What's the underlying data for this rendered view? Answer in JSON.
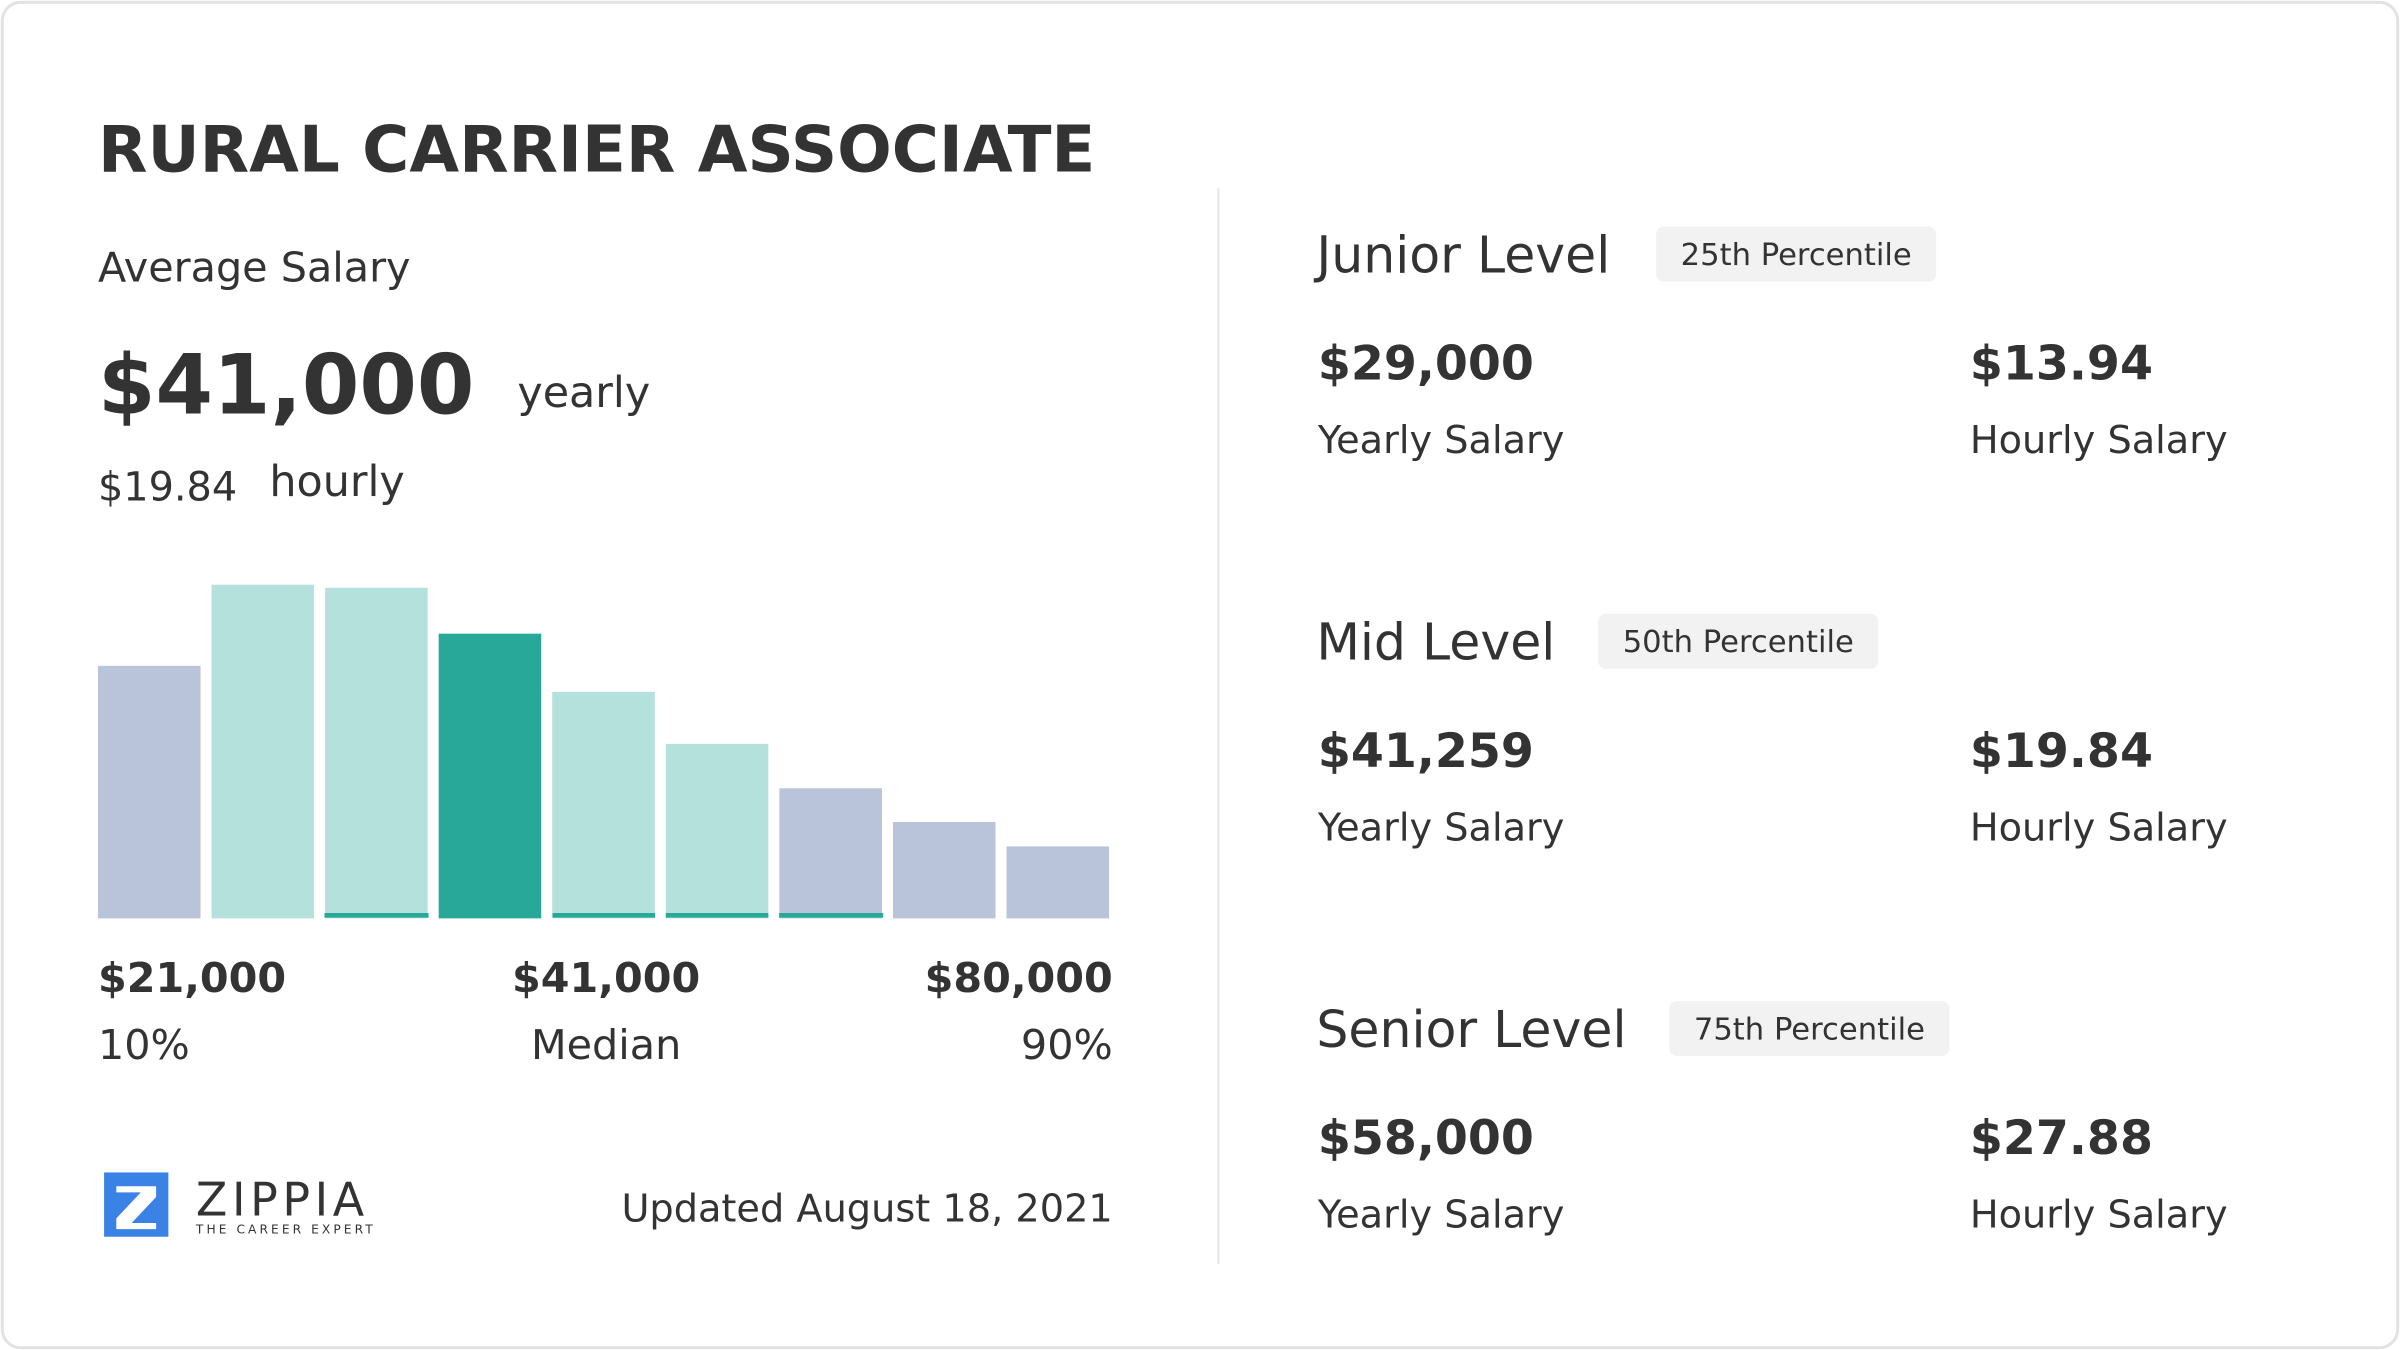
{
  "title": "RURAL CARRIER ASSOCIATE",
  "average": {
    "label": "Average Salary",
    "yearly_amount": "$41,000",
    "yearly_unit": "yearly",
    "hourly_amount": "$19.84",
    "hourly_unit": "hourly"
  },
  "chart_data": {
    "type": "bar",
    "values": [
      165,
      218,
      216,
      186,
      148,
      114,
      85,
      63,
      47
    ],
    "colors": [
      "#b9c3d9",
      "#b4e1db",
      "#b4e1db",
      "#27a899",
      "#b4e1db",
      "#b4e1db",
      "#b9c3d9",
      "#b9c3d9",
      "#b9c3d9"
    ]
  },
  "scale": [
    {
      "amount": "$21,000",
      "label": "10%"
    },
    {
      "amount": "$41,000",
      "label": "Median"
    },
    {
      "amount": "$80,000",
      "label": "90%"
    }
  ],
  "footer": {
    "brand": "ZIPPIA",
    "tagline": "THE CAREER EXPERT",
    "updated": "Updated August 18, 2021"
  },
  "levels": [
    {
      "name": "Junior Level",
      "percentile": "25th Percentile",
      "yearly": "$29,000",
      "yearly_label": "Yearly Salary",
      "hourly": "$13.94",
      "hourly_label": "Hourly Salary"
    },
    {
      "name": "Mid Level",
      "percentile": "50th Percentile",
      "yearly": "$41,259",
      "yearly_label": "Yearly Salary",
      "hourly": "$19.84",
      "hourly_label": "Hourly Salary"
    },
    {
      "name": "Senior Level",
      "percentile": "75th Percentile",
      "yearly": "$58,000",
      "yearly_label": "Yearly Salary",
      "hourly": "$27.88",
      "hourly_label": "Hourly Salary"
    }
  ]
}
